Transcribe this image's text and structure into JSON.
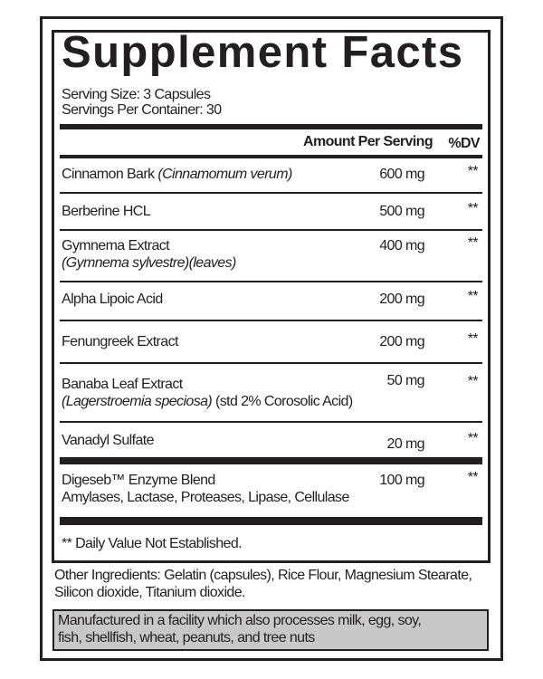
{
  "title": "Supplement Facts",
  "serving_size": "Serving Size: 3 Capsules",
  "servings_per_container": "Servings Per Container: 30",
  "header": {
    "amount": "Amount Per Serving",
    "dv": "%DV"
  },
  "rows": [
    {
      "name": "Cinnamon Bark",
      "sub": "(Cinnamomum verum)",
      "amount": "600 mg",
      "dv": "**"
    },
    {
      "name": "Berberine HCL",
      "amount": "500 mg",
      "dv": "**"
    },
    {
      "name": "Gymnema Extract",
      "sub": "(Gymnema sylvestre)(leaves)",
      "amount": "400 mg",
      "dv": "**"
    },
    {
      "name": "Alpha Lipoic Acid",
      "amount": "200 mg",
      "dv": "**"
    },
    {
      "name": "Fenungreek Extract",
      "amount": "200 mg",
      "dv": "**"
    },
    {
      "name": "Banaba Leaf Extract",
      "sub": "(Lagerstroemia speciosa)",
      "sub2": " (std 2% Corosolic Acid)",
      "amount": "50 mg",
      "dv": "**"
    },
    {
      "name": "Vanadyl Sulfate",
      "amount": "20 mg",
      "dv": "**"
    },
    {
      "name": "Digeseb™ Enzyme Blend",
      "sub": "Amylases, Lactase, Proteases, Lipase, Cellulase",
      "amount": "100 mg",
      "dv": "**"
    }
  ],
  "footnote": "** Daily Value Not Established.",
  "other_ingredients": [
    "Other Ingredients: Gelatin (capsules), Rice Flour, Magnesium Stearate,",
    "Silicon dioxide, Titanium dioxide."
  ],
  "allergen": [
    "Manufactured in a facility which also processes milk, egg, soy,",
    "fish, shellfish, wheat, peanuts, and tree nuts"
  ],
  "colors": {
    "ink": "#231f20",
    "allergen_bg": "#c8c8c9"
  }
}
